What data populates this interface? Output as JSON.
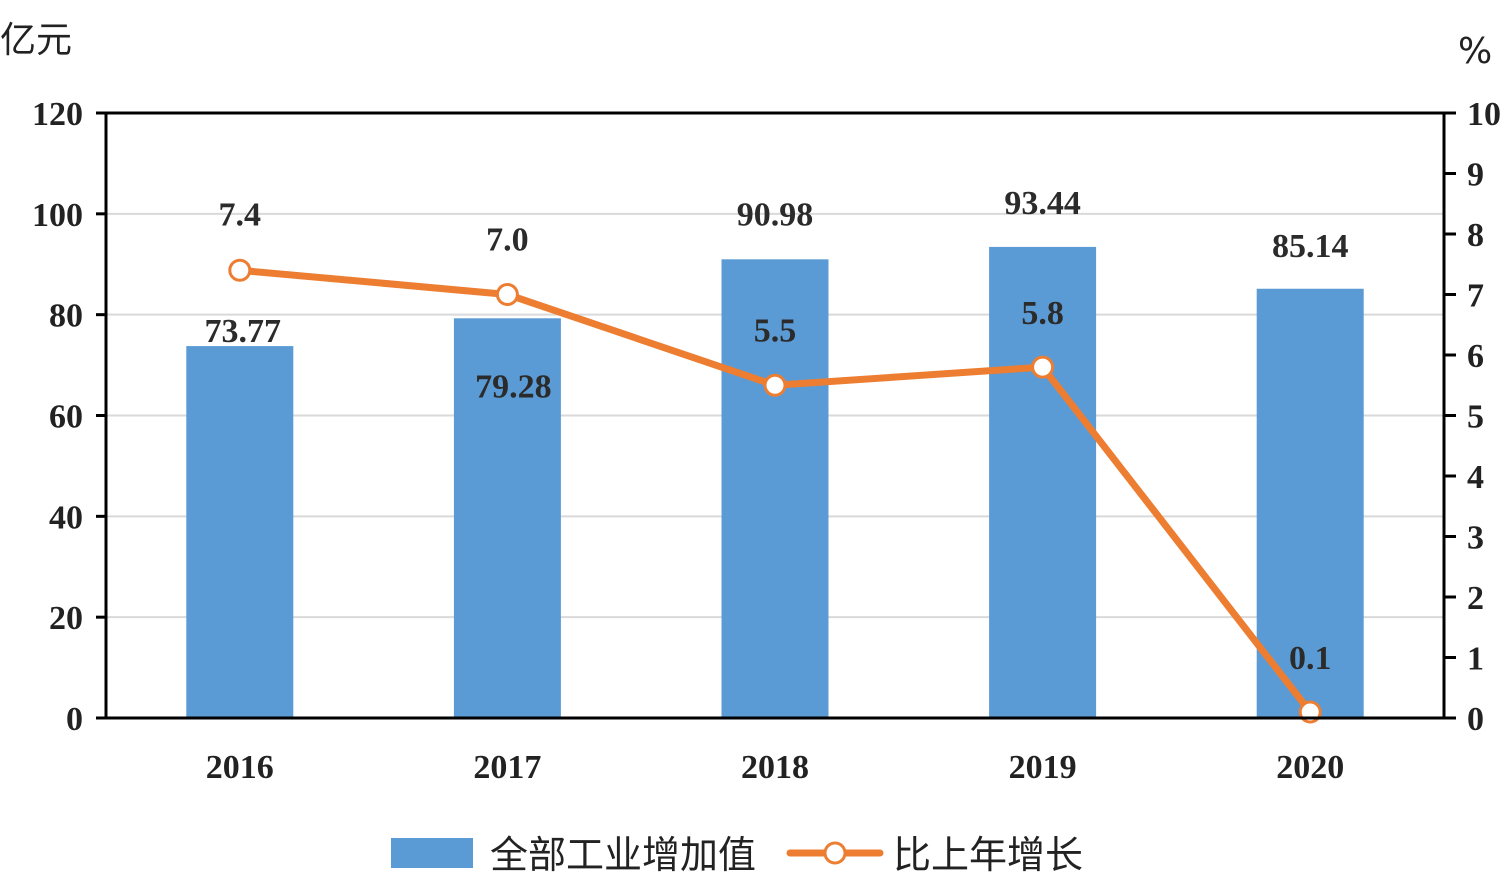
{
  "chart_data": {
    "type": "bar",
    "categories": [
      "2016",
      "2017",
      "2018",
      "2019",
      "2020"
    ],
    "series": [
      {
        "name": "全部工业增加值",
        "type": "bar",
        "axis": "left",
        "values": [
          73.77,
          79.28,
          90.98,
          93.44,
          85.14
        ],
        "labels": [
          "73.77",
          "79.28",
          "90.98",
          "93.44",
          "85.14"
        ],
        "color": "#5b9bd5"
      },
      {
        "name": "比上年增长",
        "type": "line",
        "axis": "right",
        "values": [
          7.4,
          7.0,
          5.5,
          5.8,
          0.1
        ],
        "labels": [
          "7.4",
          "7.0",
          "5.5",
          "5.8",
          "0.1"
        ],
        "color": "#ed7d31"
      }
    ],
    "left_axis": {
      "unit": "亿元",
      "ylim": [
        0,
        120
      ],
      "ticks": [
        "0",
        "20",
        "40",
        "60",
        "80",
        "100",
        "120"
      ]
    },
    "right_axis": {
      "unit": "%",
      "ylim": [
        0,
        10
      ],
      "ticks": [
        "0",
        "1",
        "2",
        "3",
        "4",
        "5",
        "6",
        "7",
        "8",
        "9",
        "10"
      ]
    },
    "grid": true,
    "legend_position": "bottom"
  }
}
